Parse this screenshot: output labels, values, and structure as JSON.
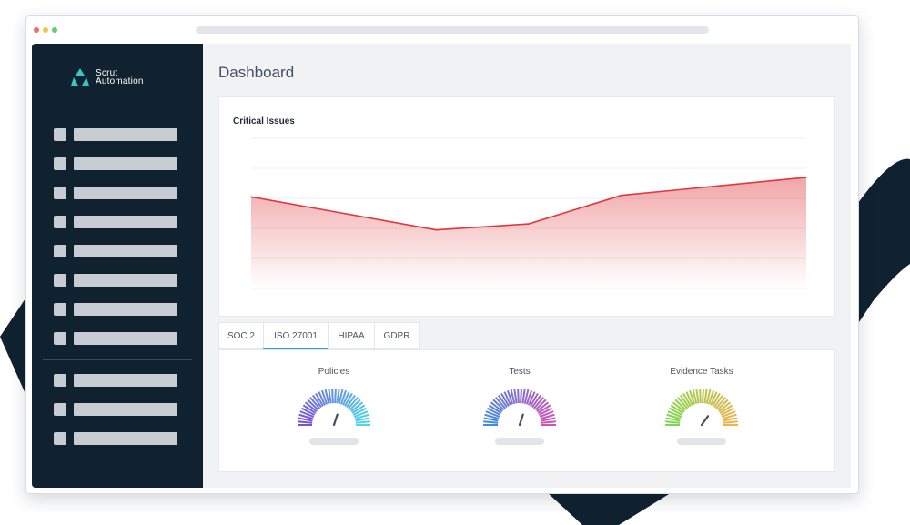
{
  "app": {
    "logo_line1": "Scrut",
    "logo_line2": "Automation",
    "page_title": "Dashboard"
  },
  "colors": {
    "sidebar_bg": "#10212f",
    "accent_teal": "#3cc3c3",
    "chart_line": "#e0383d",
    "tab_underline": "#2aa3d8",
    "background_shape": "#10212f"
  },
  "window_controls": {
    "close": "#f26a6a",
    "minimize": "#f5c44d",
    "maximize": "#5ecf6b"
  },
  "sidebar": {
    "items": [
      {
        "icon": "nav-square-icon",
        "label": ""
      },
      {
        "icon": "nav-square-icon",
        "label": ""
      },
      {
        "icon": "nav-square-icon",
        "label": ""
      },
      {
        "icon": "nav-square-icon",
        "label": ""
      },
      {
        "icon": "nav-square-icon",
        "label": ""
      },
      {
        "icon": "nav-square-icon",
        "label": ""
      },
      {
        "icon": "nav-square-icon",
        "label": ""
      },
      {
        "icon": "nav-square-icon",
        "label": ""
      }
    ],
    "secondary_items": [
      {
        "icon": "nav-square-icon",
        "label": ""
      },
      {
        "icon": "nav-square-icon",
        "label": ""
      },
      {
        "icon": "nav-square-icon",
        "label": ""
      }
    ]
  },
  "critical_issues": {
    "title": "Critical Issues"
  },
  "chart_data": {
    "type": "area",
    "title": "Critical Issues",
    "xlabel": "",
    "ylabel": "",
    "x": [
      0,
      1,
      2,
      3,
      4,
      5,
      6
    ],
    "values": [
      6.1,
      5.0,
      3.9,
      4.3,
      6.2,
      6.8,
      7.4
    ],
    "ylim": [
      0,
      10
    ],
    "grid": true,
    "legend": "none"
  },
  "framework_tabs": [
    {
      "label": "SOC 2",
      "active": false
    },
    {
      "label": "ISO 27001",
      "active": true
    },
    {
      "label": "HIPAA",
      "active": false
    },
    {
      "label": "GDPR",
      "active": false
    }
  ],
  "gauges": [
    {
      "label": "Policies",
      "color_start": "#7a4fd6",
      "color_end": "#4fd8e8",
      "needle": 0.6
    },
    {
      "label": "Tests",
      "color_start": "#3f8de0",
      "color_end": "#d64fb8",
      "needle": 0.6
    },
    {
      "label": "Evidence Tasks",
      "color_start": "#7bd84f",
      "color_end": "#f2b24a",
      "needle": 0.7
    }
  ]
}
